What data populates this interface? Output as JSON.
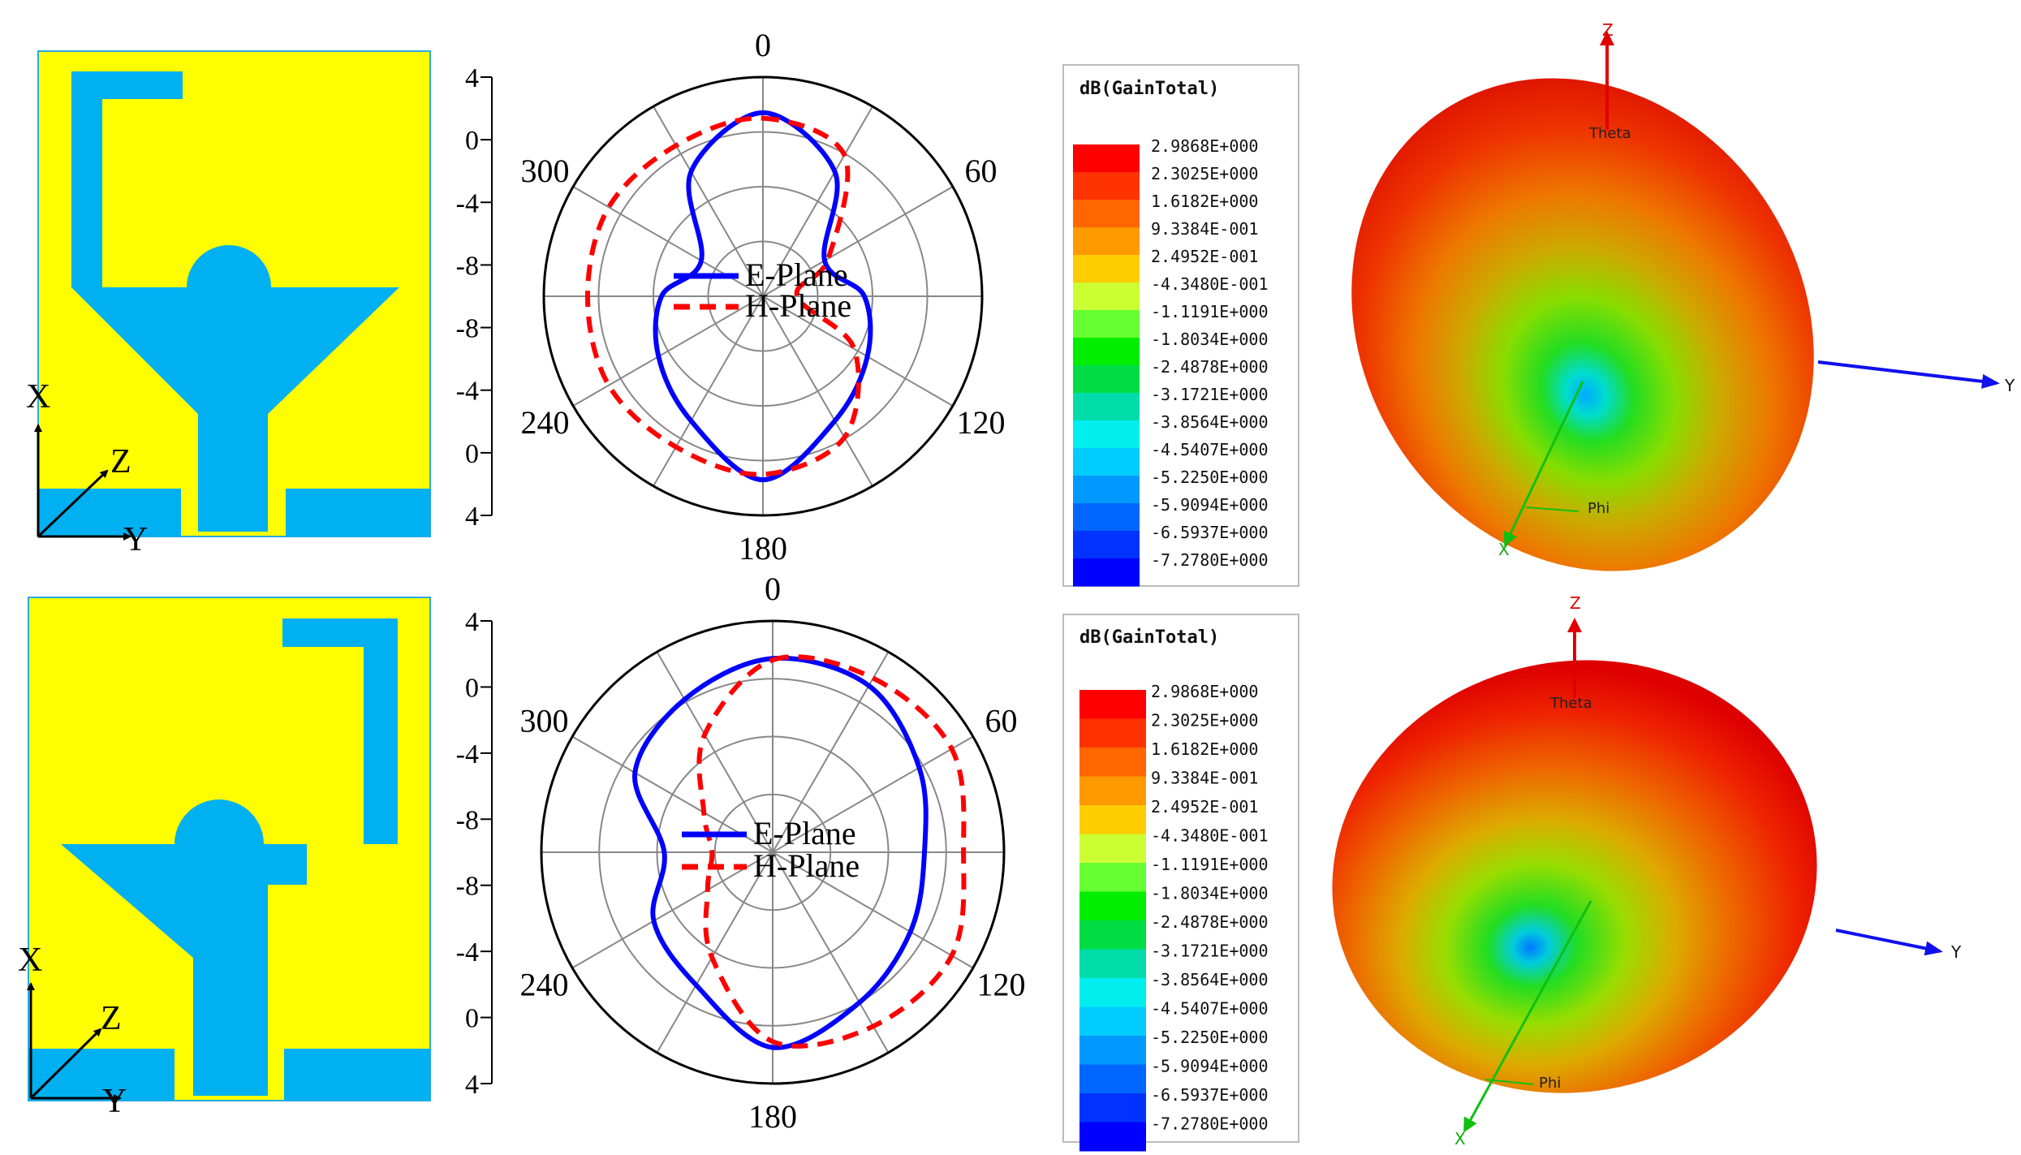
{
  "figure": {
    "rows": [
      {
        "antenna": {
          "variant": "stub-left",
          "substrate_color": "#ffff00",
          "metal_color": "#00b0f0",
          "axis_labels": {
            "x": "X",
            "y": "Y",
            "z": "Z"
          }
        },
        "legend": {
          "title": "dB(GainTotal)",
          "values": [
            "2.9868E+000",
            "2.3025E+000",
            "1.6182E+000",
            "9.3384E-001",
            "2.4952E-001",
            "-4.3480E-001",
            "-1.1191E+000",
            "-1.8034E+000",
            "-2.4878E+000",
            "-3.1721E+000",
            "-3.8564E+000",
            "-4.5407E+000",
            "-5.2250E+000",
            "-5.9094E+000",
            "-6.5937E+000",
            "-7.2780E+000"
          ]
        },
        "pattern3d": {
          "axis_labels": {
            "z": "Z",
            "y": "Y",
            "x": "X",
            "theta": "Theta",
            "phi": "Phi"
          }
        }
      },
      {
        "antenna": {
          "variant": "stub-right",
          "substrate_color": "#ffff00",
          "metal_color": "#00b0f0",
          "axis_labels": {
            "x": "X",
            "y": "Y",
            "z": "Z"
          }
        },
        "legend": {
          "title": "dB(GainTotal)",
          "values": [
            "2.9868E+000",
            "2.3025E+000",
            "1.6182E+000",
            "9.3384E-001",
            "2.4952E-001",
            "-4.3480E-001",
            "-1.1191E+000",
            "-1.8034E+000",
            "-2.4878E+000",
            "-3.1721E+000",
            "-3.8564E+000",
            "-4.5407E+000",
            "-5.2250E+000",
            "-5.9094E+000",
            "-6.5937E+000",
            "-7.2780E+000"
          ]
        },
        "pattern3d": {
          "axis_labels": {
            "z": "Z",
            "y": "Y",
            "x": "X",
            "theta": "Theta",
            "phi": "Phi"
          }
        }
      }
    ],
    "colorbar": [
      "#ff0000",
      "#ff3300",
      "#ff6600",
      "#ff9900",
      "#ffcc00",
      "#ccff33",
      "#66ff33",
      "#00ee00",
      "#00dd44",
      "#00ddaa",
      "#00eeee",
      "#00ccff",
      "#0099ff",
      "#0066ff",
      "#0033ff",
      "#0000ff"
    ]
  },
  "chart_data": [
    {
      "type": "polar",
      "title": "",
      "radial_axis": {
        "range": [
          -12,
          4
        ],
        "tick_labels_top": [
          "4",
          "0",
          "-4",
          "-8"
        ],
        "tick_labels_bottom": [
          "-8",
          "-4",
          "0",
          "4"
        ],
        "unit": "dB"
      },
      "angular_ticks": [
        "0",
        "60",
        "120",
        "180",
        "240",
        "300"
      ],
      "angle_step_deg": 30,
      "series": [
        {
          "name": "E-Plane",
          "color": "#0000ff",
          "style": "solid",
          "theta_deg": [
            0,
            30,
            60,
            90,
            120,
            150,
            180,
            210,
            240,
            270,
            300,
            330
          ],
          "values": [
            1.4,
            -1.5,
            -6.8,
            -4.6,
            -3.2,
            -1.5,
            1.4,
            -1.5,
            -3.2,
            -4.6,
            -6.8,
            -1.5
          ]
        },
        {
          "name": "H-Plane",
          "color": "#ff0000",
          "style": "dashed",
          "theta_deg": [
            0,
            30,
            60,
            90,
            120,
            150,
            180,
            210,
            240,
            270,
            300,
            330
          ],
          "values": [
            1.0,
            -0.1,
            -6.5,
            -9.5,
            -4.3,
            -0.1,
            1.0,
            0.7,
            1.0,
            0.8,
            1.0,
            0.7
          ]
        }
      ]
    },
    {
      "type": "polar",
      "title": "",
      "radial_axis": {
        "range": [
          -12,
          4
        ],
        "tick_labels_top": [
          "4",
          "0",
          "-4",
          "-8"
        ],
        "tick_labels_bottom": [
          "-8",
          "-4",
          "0",
          "4"
        ],
        "unit": "dB"
      },
      "angular_ticks": [
        "0",
        "60",
        "120",
        "180",
        "240",
        "300"
      ],
      "angle_step_deg": 30,
      "series": [
        {
          "name": "E-Plane",
          "color": "#0000ff",
          "style": "solid",
          "theta_deg": [
            0,
            30,
            60,
            90,
            120,
            150,
            180,
            210,
            240,
            270,
            300,
            330
          ],
          "values": [
            1.4,
            1.3,
            -0.3,
            -1.5,
            -1.0,
            0.0,
            1.5,
            -1.4,
            -2.5,
            -4.5,
            -1.0,
            0.2
          ]
        },
        {
          "name": "H-Plane",
          "color": "#ff0000",
          "style": "dashed",
          "theta_deg": [
            0,
            30,
            60,
            90,
            120,
            150,
            180,
            210,
            240,
            270,
            300,
            330
          ],
          "values": [
            1.3,
            1.9,
            2.3,
            1.2,
            2.3,
            1.9,
            1.1,
            -3.6,
            -6.8,
            -7.8,
            -6.5,
            -2.6
          ]
        }
      ]
    }
  ]
}
